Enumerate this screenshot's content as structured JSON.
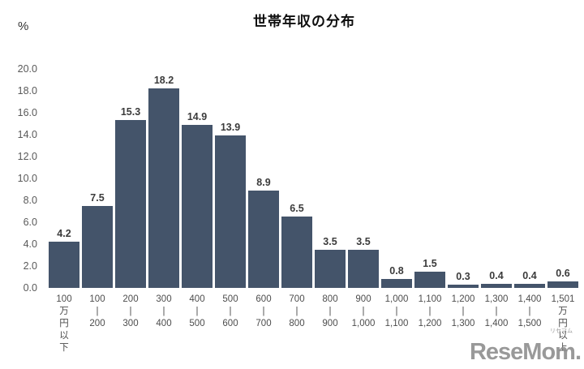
{
  "title": "世帯年収の分布",
  "unit_label": "%",
  "watermark": {
    "text": "ReseMom.",
    "furigana": "リセマム"
  },
  "colors": {
    "bar": "#44546A",
    "data_label": "#3b3b3b",
    "tick_label": "#595959",
    "x_label": "#4d4d4d",
    "title": "#0d0d0d",
    "watermark": "#8b8b8b",
    "background": "#ffffff"
  },
  "chart_data": {
    "type": "bar",
    "title": "世帯年収の分布",
    "xlabel": "",
    "ylabel": "%",
    "ylim": [
      0,
      20
    ],
    "ytick_step": 2,
    "yticks": [
      "20.0",
      "18.0",
      "16.0",
      "14.0",
      "12.0",
      "10.0",
      "8.0",
      "6.0",
      "4.0",
      "2.0",
      "0.0"
    ],
    "grid": false,
    "legend": "none",
    "categories": [
      "100万円以下",
      "100—200",
      "200—300",
      "300—400",
      "400—500",
      "500—600",
      "600—700",
      "700—800",
      "800—900",
      "900—1,000",
      "1,000—1,100",
      "1,100—1,200",
      "1,200—1,300",
      "1,300—1,400",
      "1,400—1,500",
      "1,501万円以上"
    ],
    "category_label_lines": [
      [
        "100",
        "万",
        "円",
        "以",
        "下"
      ],
      [
        "100",
        "|",
        "200"
      ],
      [
        "200",
        "|",
        "300"
      ],
      [
        "300",
        "|",
        "400"
      ],
      [
        "400",
        "|",
        "500"
      ],
      [
        "500",
        "|",
        "600"
      ],
      [
        "600",
        "|",
        "700"
      ],
      [
        "700",
        "|",
        "800"
      ],
      [
        "800",
        "|",
        "900"
      ],
      [
        "900",
        "|",
        "1,000"
      ],
      [
        "1,000",
        "|",
        "1,100"
      ],
      [
        "1,100",
        "|",
        "1,200"
      ],
      [
        "1,200",
        "|",
        "1,300"
      ],
      [
        "1,300",
        "|",
        "1,400"
      ],
      [
        "1,400",
        "|",
        "1,500"
      ],
      [
        "1,501",
        "万",
        "円",
        "以",
        "上"
      ]
    ],
    "values": [
      4.2,
      7.5,
      15.3,
      18.2,
      14.9,
      13.9,
      8.9,
      6.5,
      3.5,
      3.5,
      0.8,
      1.5,
      0.3,
      0.4,
      0.4,
      0.6
    ],
    "data_labels": [
      "4.2",
      "7.5",
      "15.3",
      "18.2",
      "14.9",
      "13.9",
      "8.9",
      "6.5",
      "3.5",
      "3.5",
      "0.8",
      "1.5",
      "0.3",
      "0.4",
      "0.4",
      "0.6"
    ]
  }
}
